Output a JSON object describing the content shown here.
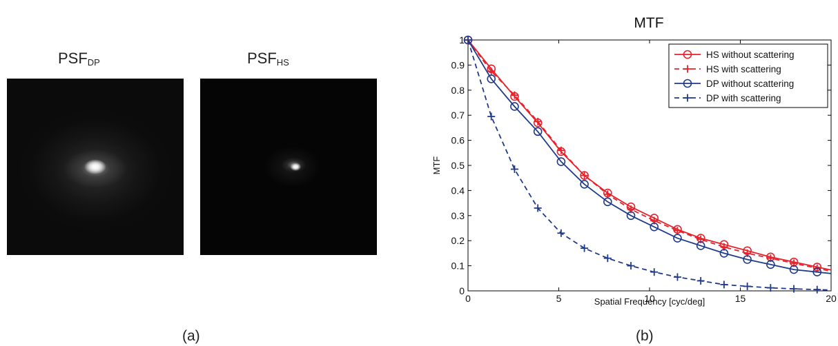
{
  "figure": {
    "psf_dp_title": {
      "main": "PSF",
      "sub": "DP"
    },
    "psf_hs_title": {
      "main": "PSF",
      "sub": "HS"
    },
    "label_a": "(a)",
    "label_b": "(b)"
  },
  "chart_data": {
    "type": "line",
    "title": "MTF",
    "xlabel": "Spatial Frequency [cyc/deg]",
    "ylabel": "MTF",
    "xlim": [
      0,
      20
    ],
    "ylim": [
      0,
      1
    ],
    "xticks": [
      0,
      5,
      10,
      15,
      20
    ],
    "yticks": [
      0,
      0.1,
      0.2,
      0.3,
      0.4,
      0.5,
      0.6,
      0.7,
      0.8,
      0.9,
      1
    ],
    "grid": false,
    "legend_position": "top-right",
    "x": [
      0,
      1.282,
      2.564,
      3.846,
      5.128,
      6.41,
      7.692,
      8.974,
      10.256,
      11.538,
      12.82,
      14.103,
      15.385,
      16.667,
      17.949,
      19.231
    ],
    "series": [
      {
        "name": "HS without scattering",
        "color": "#e8212b",
        "line": "solid",
        "marker": "circle",
        "values": [
          1.0,
          0.885,
          0.775,
          0.67,
          0.555,
          0.46,
          0.39,
          0.335,
          0.29,
          0.245,
          0.21,
          0.185,
          0.16,
          0.135,
          0.115,
          0.095
        ]
      },
      {
        "name": "HS with scattering",
        "color": "#e8212b",
        "line": "dashed",
        "marker": "plus",
        "values": [
          1.0,
          0.875,
          0.78,
          0.675,
          0.56,
          0.46,
          0.385,
          0.325,
          0.28,
          0.24,
          0.205,
          0.175,
          0.15,
          0.13,
          0.11,
          0.09
        ]
      },
      {
        "name": "DP without scattering",
        "color": "#1f3a8a",
        "line": "solid",
        "marker": "circle",
        "values": [
          1.0,
          0.845,
          0.735,
          0.635,
          0.515,
          0.425,
          0.355,
          0.3,
          0.255,
          0.21,
          0.18,
          0.15,
          0.125,
          0.105,
          0.085,
          0.075
        ]
      },
      {
        "name": "DP with scattering",
        "color": "#1f3a8a",
        "line": "dashed",
        "marker": "plus",
        "values": [
          1.0,
          0.695,
          0.485,
          0.33,
          0.23,
          0.17,
          0.13,
          0.1,
          0.075,
          0.055,
          0.04,
          0.025,
          0.018,
          0.012,
          0.008,
          0.005
        ]
      }
    ]
  }
}
